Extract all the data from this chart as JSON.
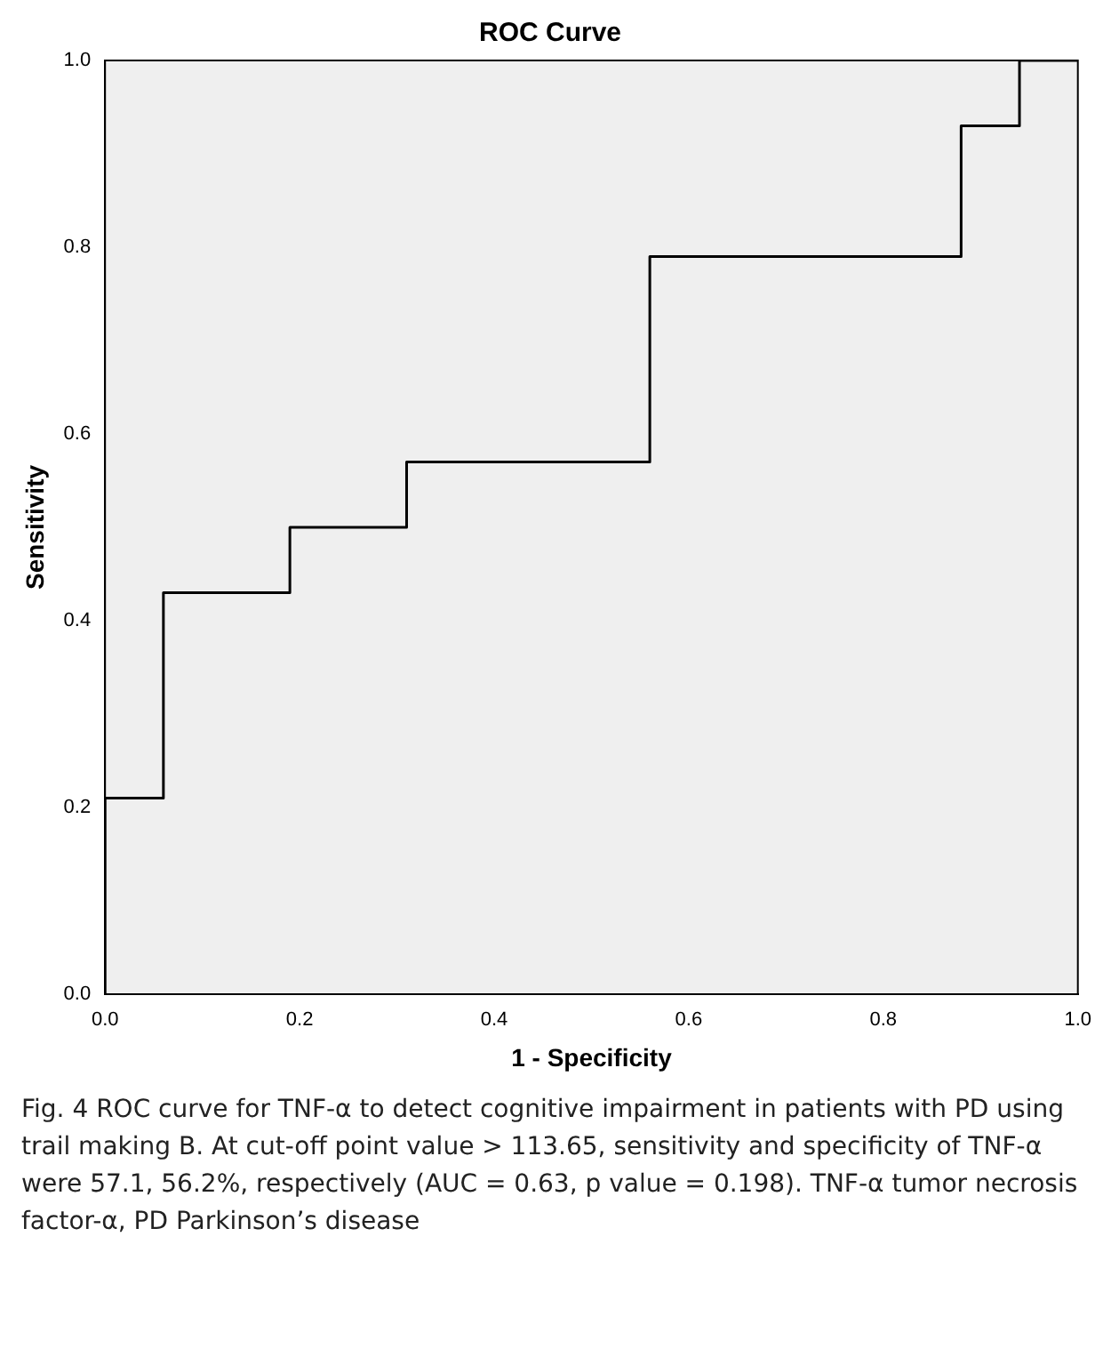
{
  "chart_data": {
    "type": "step",
    "title": "ROC Curve",
    "xlabel": "1 - Specificity",
    "ylabel": "Sensitivity",
    "x": [
      0,
      0,
      0.06,
      0.19,
      0.31,
      0.56,
      0.88,
      0.94,
      1
    ],
    "series": [
      {
        "color": "#000000",
        "values": [
          0,
          0.21,
          0.43,
          0.5,
          0.57,
          0.79,
          0.93,
          1,
          1
        ]
      }
    ],
    "xlim": [
      0,
      1
    ],
    "ylim": [
      0,
      1
    ],
    "xticks": [
      {
        "value": 0,
        "label": "0.0"
      },
      {
        "value": 0.2,
        "label": "0.2"
      },
      {
        "value": 0.4,
        "label": "0.4"
      },
      {
        "value": 0.6,
        "label": "0.6"
      },
      {
        "value": 0.8,
        "label": "0.8"
      },
      {
        "value": 1,
        "label": "1.0"
      }
    ],
    "yticks": [
      {
        "value": 0,
        "label": "0.0"
      },
      {
        "value": 0.2,
        "label": "0.2"
      },
      {
        "value": 0.4,
        "label": "0.4"
      },
      {
        "value": 0.6,
        "label": "0.6"
      },
      {
        "value": 0.8,
        "label": "0.8"
      },
      {
        "value": 1,
        "label": "1.0"
      }
    ],
    "grid": false,
    "legend": false,
    "marker": "none",
    "line_style": "solid",
    "annotations": [
      "Fig. 4 ROC curve for TNF-α to detect cognitive impairment in patients with PD using trail making B. At cut-off point value > 113.65, sensitivity and specificity of TNF-α were 57.1, 56.2%, respectively (AUC = 0.63, p value = 0.198). TNF-α tumor necrosis factor-α, PD Parkinson’s disease"
    ]
  }
}
